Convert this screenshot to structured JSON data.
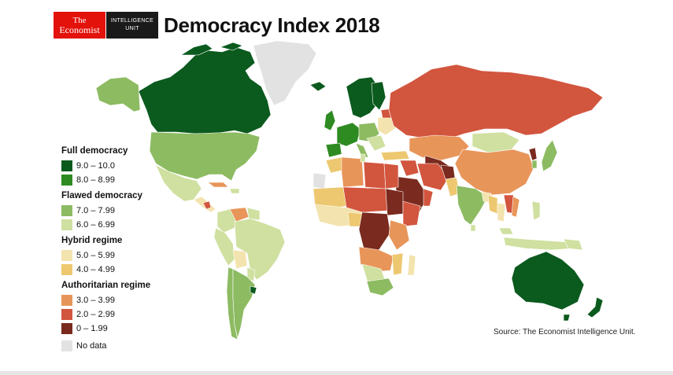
{
  "header": {
    "logo_line1": "The",
    "logo_line2": "Economist",
    "unit_line1": "INTELLIGENCE",
    "unit_line2": "UNIT",
    "title": "Democracy Index 2018"
  },
  "legend": {
    "groups": [
      {
        "title": "Full democracy",
        "items": [
          {
            "label": "9.0 – 10.0",
            "color": "#0b5a1e"
          },
          {
            "label": "8.0 – 8.99",
            "color": "#2e8b22"
          }
        ]
      },
      {
        "title": "Flawed democracy",
        "items": [
          {
            "label": "7.0 – 7.99",
            "color": "#8dbb62"
          },
          {
            "label": "6.0 – 6.99",
            "color": "#cfe0a0"
          }
        ]
      },
      {
        "title": "Hybrid regime",
        "items": [
          {
            "label": "5.0 – 5.99",
            "color": "#f3e3ae"
          },
          {
            "label": "4.0 – 4.99",
            "color": "#edc870"
          }
        ]
      },
      {
        "title": "Authoritarian regime",
        "items": [
          {
            "label": "3.0 – 3.99",
            "color": "#e8955a"
          },
          {
            "label": "2.0 – 2.99",
            "color": "#d2553e"
          },
          {
            "label": "0 – 1.99",
            "color": "#7a2a1e"
          }
        ]
      }
    ],
    "no_data": {
      "label": "No data",
      "color": "#e2e2e2"
    }
  },
  "source": "Source: The Economist Intelligence Unit.",
  "colors": {
    "full_high": "#0b5a1e",
    "full_low": "#2e8b22",
    "flawed_high": "#8dbb62",
    "flawed_low": "#cfe0a0",
    "hybrid_high": "#f3e3ae",
    "hybrid_low": "#edc870",
    "auth_high": "#e8955a",
    "auth_mid": "#d2553e",
    "auth_low": "#7a2a1e",
    "no_data": "#e2e2e2"
  }
}
